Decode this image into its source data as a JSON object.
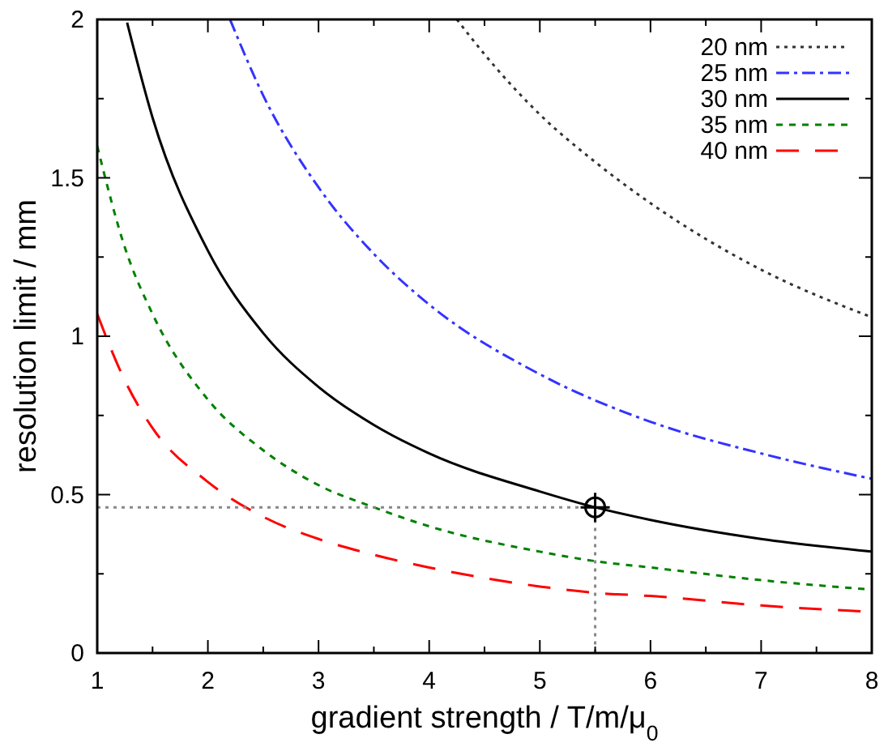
{
  "chart_data": {
    "type": "line",
    "xlabel": "gradient strength / T/m/μ$_{0}$",
    "ylabel": "resolution limit / mm",
    "xlim": [
      1,
      8
    ],
    "ylim": [
      0,
      2
    ],
    "xticks": [
      1,
      2,
      3,
      4,
      5,
      6,
      7,
      8
    ],
    "yticks": [
      0,
      0.5,
      1,
      1.5,
      2
    ],
    "grid": false,
    "legend": "top right",
    "series": [
      {
        "name": "20 nm",
        "color": "#333333",
        "line_style": "dotted",
        "x": [
          4.25,
          4.5,
          5,
          5.5,
          6,
          7,
          8
        ],
        "values": [
          2.0,
          1.89,
          1.7,
          1.55,
          1.42,
          1.21,
          1.06
        ]
      },
      {
        "name": "25 nm",
        "color": "#3333ff",
        "line_style": "dashdot",
        "x": [
          2.2,
          2.5,
          3,
          3.5,
          4,
          5,
          6,
          7,
          8
        ],
        "values": [
          2.0,
          1.76,
          1.47,
          1.26,
          1.1,
          0.88,
          0.73,
          0.63,
          0.55
        ]
      },
      {
        "name": "30 nm",
        "color": "#000000",
        "line_style": "solid",
        "x": [
          1.27,
          1.5,
          2,
          2.5,
          3,
          3.5,
          4,
          5,
          5.5,
          6,
          7,
          8
        ],
        "values": [
          1.99,
          1.69,
          1.27,
          1.01,
          0.84,
          0.72,
          0.63,
          0.51,
          0.46,
          0.42,
          0.36,
          0.32
        ]
      },
      {
        "name": "35 nm",
        "color": "#008000",
        "line_style": "dashed",
        "x": [
          1,
          1.25,
          1.5,
          2,
          2.5,
          3,
          3.5,
          4,
          5,
          5.5,
          6,
          7,
          8
        ],
        "values": [
          1.6,
          1.28,
          1.07,
          0.8,
          0.64,
          0.53,
          0.46,
          0.4,
          0.32,
          0.29,
          0.27,
          0.23,
          0.2
        ]
      },
      {
        "name": "40 nm",
        "color": "#ff0000",
        "line_style": "longdash",
        "x": [
          1,
          1.25,
          1.5,
          2,
          2.5,
          3,
          3.5,
          4,
          5,
          5.5,
          6,
          7,
          8
        ],
        "values": [
          1.07,
          0.86,
          0.71,
          0.54,
          0.43,
          0.36,
          0.31,
          0.27,
          0.21,
          0.19,
          0.18,
          0.15,
          0.13
        ]
      },
      {
        "type": "line",
        "color": "#888888",
        "line_style": "dotted",
        "x": [
          1,
          5.5,
          5.5
        ],
        "values": [
          0.46,
          0.46,
          0
        ]
      },
      {
        "type": "scatter",
        "color": "#000000",
        "marker": "circle",
        "x": [
          5.5
        ],
        "values": [
          0.46
        ]
      }
    ]
  }
}
